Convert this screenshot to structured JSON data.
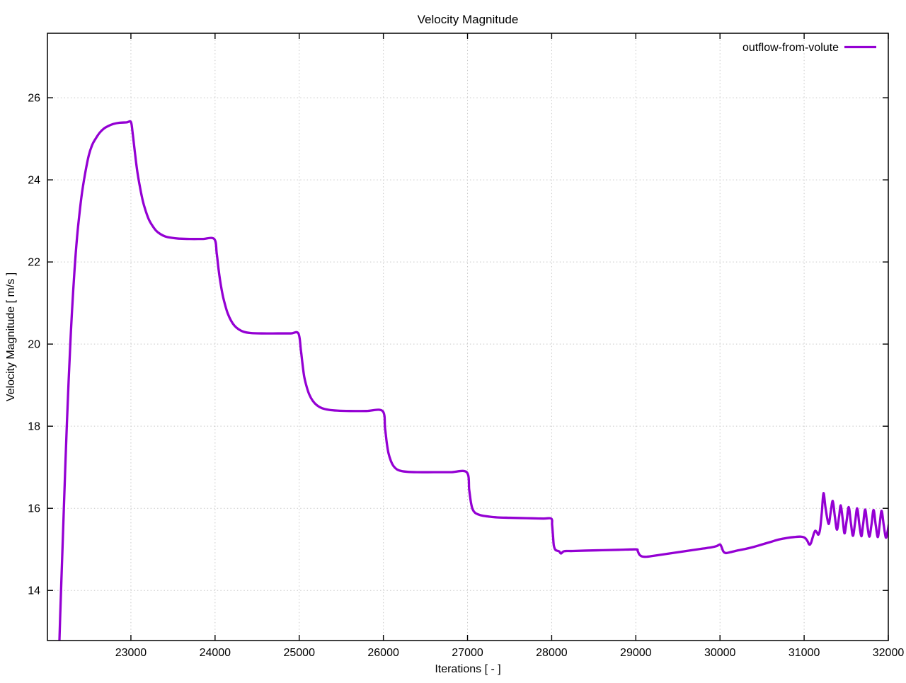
{
  "window": {
    "background": "#ffffff"
  },
  "chart_data": {
    "type": "line",
    "title": "Velocity Magnitude",
    "xlabel": "Iterations [ - ]",
    "ylabel": "Velocity Magnitude [ m/s ]",
    "xlim": [
      22008,
      32000
    ],
    "ylim": [
      12.78,
      27.57
    ],
    "xticks": [
      23000,
      24000,
      25000,
      26000,
      27000,
      28000,
      29000,
      30000,
      31000,
      32000
    ],
    "yticks": [
      14,
      16,
      18,
      20,
      22,
      24,
      26
    ],
    "grid": true,
    "grid_style": "dotted",
    "legend_position": "top-right-inside",
    "colors": {
      "series": "#9400d3",
      "grid": "#c8c8c8",
      "axis": "#000000",
      "background": "#ffffff"
    },
    "series": [
      {
        "name": "outflow-from-volute",
        "color": "#9400d3",
        "points": [
          [
            22148,
            12.6
          ],
          [
            22160,
            13.4
          ],
          [
            22180,
            14.6
          ],
          [
            22200,
            15.8
          ],
          [
            22220,
            17.0
          ],
          [
            22240,
            18.1
          ],
          [
            22260,
            19.1
          ],
          [
            22280,
            20.0
          ],
          [
            22300,
            20.8
          ],
          [
            22330,
            21.8
          ],
          [
            22360,
            22.6
          ],
          [
            22390,
            23.2
          ],
          [
            22420,
            23.7
          ],
          [
            22460,
            24.2
          ],
          [
            22500,
            24.6
          ],
          [
            22540,
            24.85
          ],
          [
            22580,
            25.0
          ],
          [
            22630,
            25.15
          ],
          [
            22680,
            25.25
          ],
          [
            22730,
            25.31
          ],
          [
            22790,
            25.36
          ],
          [
            22860,
            25.39
          ],
          [
            22950,
            25.4
          ],
          [
            23000,
            25.41
          ],
          [
            23020,
            25.15
          ],
          [
            23040,
            24.8
          ],
          [
            23060,
            24.45
          ],
          [
            23080,
            24.15
          ],
          [
            23110,
            23.8
          ],
          [
            23140,
            23.5
          ],
          [
            23170,
            23.28
          ],
          [
            23210,
            23.05
          ],
          [
            23250,
            22.9
          ],
          [
            23300,
            22.76
          ],
          [
            23350,
            22.68
          ],
          [
            23410,
            22.62
          ],
          [
            23480,
            22.59
          ],
          [
            23560,
            22.57
          ],
          [
            23700,
            22.56
          ],
          [
            23850,
            22.56
          ],
          [
            23990,
            22.56
          ],
          [
            24020,
            22.2
          ],
          [
            24040,
            21.85
          ],
          [
            24060,
            21.55
          ],
          [
            24090,
            21.2
          ],
          [
            24120,
            20.95
          ],
          [
            24150,
            20.75
          ],
          [
            24190,
            20.57
          ],
          [
            24230,
            20.45
          ],
          [
            24280,
            20.36
          ],
          [
            24340,
            20.3
          ],
          [
            24420,
            20.27
          ],
          [
            24550,
            20.26
          ],
          [
            24750,
            20.26
          ],
          [
            24900,
            20.26
          ],
          [
            24990,
            20.26
          ],
          [
            25020,
            19.85
          ],
          [
            25040,
            19.5
          ],
          [
            25060,
            19.2
          ],
          [
            25090,
            18.95
          ],
          [
            25120,
            18.77
          ],
          [
            25160,
            18.62
          ],
          [
            25210,
            18.51
          ],
          [
            25270,
            18.44
          ],
          [
            25350,
            18.4
          ],
          [
            25450,
            18.38
          ],
          [
            25600,
            18.37
          ],
          [
            25800,
            18.37
          ],
          [
            25990,
            18.37
          ],
          [
            26020,
            17.95
          ],
          [
            26040,
            17.6
          ],
          [
            26060,
            17.35
          ],
          [
            26090,
            17.15
          ],
          [
            26120,
            17.03
          ],
          [
            26160,
            16.95
          ],
          [
            26210,
            16.91
          ],
          [
            26280,
            16.89
          ],
          [
            26400,
            16.88
          ],
          [
            26600,
            16.88
          ],
          [
            26800,
            16.88
          ],
          [
            26990,
            16.88
          ],
          [
            27020,
            16.45
          ],
          [
            27040,
            16.15
          ],
          [
            27060,
            15.98
          ],
          [
            27090,
            15.89
          ],
          [
            27130,
            15.85
          ],
          [
            27180,
            15.82
          ],
          [
            27250,
            15.8
          ],
          [
            27350,
            15.78
          ],
          [
            27500,
            15.77
          ],
          [
            27700,
            15.76
          ],
          [
            27900,
            15.75
          ],
          [
            27995,
            15.75
          ],
          [
            28005,
            15.6
          ],
          [
            28015,
            15.35
          ],
          [
            28025,
            15.1
          ],
          [
            28040,
            15.0
          ],
          [
            28060,
            14.97
          ],
          [
            28090,
            14.95
          ],
          [
            28110,
            14.9
          ],
          [
            28140,
            14.95
          ],
          [
            28180,
            14.96
          ],
          [
            28250,
            14.96
          ],
          [
            28400,
            14.97
          ],
          [
            28600,
            14.98
          ],
          [
            28800,
            14.99
          ],
          [
            29000,
            15.0
          ],
          [
            29020,
            14.97
          ],
          [
            29040,
            14.88
          ],
          [
            29070,
            14.83
          ],
          [
            29120,
            14.82
          ],
          [
            29200,
            14.84
          ],
          [
            29300,
            14.87
          ],
          [
            29400,
            14.9
          ],
          [
            29500,
            14.93
          ],
          [
            29600,
            14.96
          ],
          [
            29700,
            14.99
          ],
          [
            29800,
            15.02
          ],
          [
            29900,
            15.05
          ],
          [
            29960,
            15.08
          ],
          [
            30000,
            15.12
          ],
          [
            30020,
            15.05
          ],
          [
            30040,
            14.95
          ],
          [
            30070,
            14.91
          ],
          [
            30120,
            14.93
          ],
          [
            30200,
            14.97
          ],
          [
            30300,
            15.01
          ],
          [
            30400,
            15.06
          ],
          [
            30500,
            15.12
          ],
          [
            30600,
            15.18
          ],
          [
            30700,
            15.24
          ],
          [
            30800,
            15.28
          ],
          [
            30880,
            15.3
          ],
          [
            30960,
            15.31
          ],
          [
            31010,
            15.28
          ],
          [
            31040,
            15.2
          ],
          [
            31060,
            15.12
          ],
          [
            31080,
            15.15
          ],
          [
            31110,
            15.35
          ],
          [
            31130,
            15.45
          ],
          [
            31150,
            15.42
          ],
          [
            31170,
            15.36
          ],
          [
            31190,
            15.5
          ],
          [
            31210,
            15.9
          ],
          [
            31230,
            16.37
          ],
          [
            31255,
            16.0
          ],
          [
            31290,
            15.62
          ],
          [
            31315,
            15.9
          ],
          [
            31340,
            16.18
          ],
          [
            31365,
            15.8
          ],
          [
            31390,
            15.48
          ],
          [
            31415,
            15.8
          ],
          [
            31435,
            16.07
          ],
          [
            31460,
            15.7
          ],
          [
            31480,
            15.39
          ],
          [
            31505,
            15.7
          ],
          [
            31530,
            16.03
          ],
          [
            31555,
            15.65
          ],
          [
            31580,
            15.33
          ],
          [
            31605,
            15.65
          ],
          [
            31630,
            16.0
          ],
          [
            31655,
            15.62
          ],
          [
            31680,
            15.32
          ],
          [
            31700,
            15.6
          ],
          [
            31725,
            15.97
          ],
          [
            31750,
            15.6
          ],
          [
            31775,
            15.31
          ],
          [
            31800,
            15.6
          ],
          [
            31825,
            15.96
          ],
          [
            31850,
            15.6
          ],
          [
            31875,
            15.3
          ],
          [
            31897,
            15.6
          ],
          [
            31920,
            15.94
          ],
          [
            31945,
            15.6
          ],
          [
            31970,
            15.29
          ],
          [
            31990,
            15.42
          ],
          [
            32005,
            15.6
          ]
        ]
      }
    ]
  }
}
